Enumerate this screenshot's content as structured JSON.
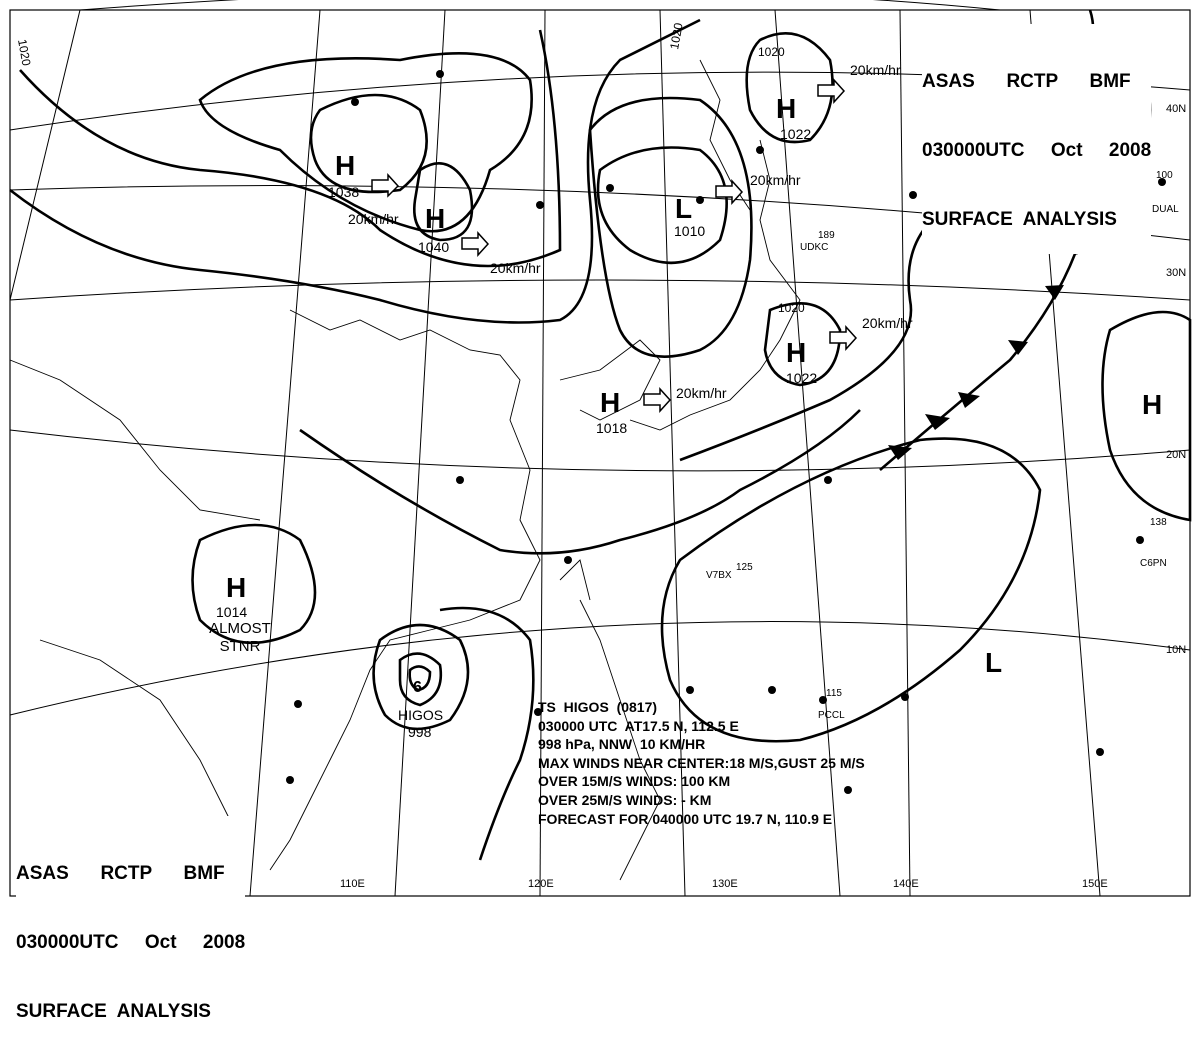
{
  "header": {
    "line1": "ASAS      RCTP      BMF",
    "line2": "030000UTC     Oct     2008",
    "line3": "SURFACE  ANALYSIS"
  },
  "footer": {
    "line1": "ASAS      RCTP      BMF",
    "line2": "030000UTC     Oct     2008",
    "line3": "SURFACE  ANALYSIS"
  },
  "longitudes": [
    "110E",
    "120E",
    "130E",
    "140E",
    "150E"
  ],
  "latitudes": [
    "40N",
    "30N",
    "20N",
    "10N"
  ],
  "isobar_labels": [
    "1020",
    "1020",
    "1020",
    "1020"
  ],
  "pressure_centers": [
    {
      "type": "H",
      "value": "1038",
      "motion": ""
    },
    {
      "type": "H",
      "value": "1040",
      "motion": "20km/hr"
    },
    {
      "type": "L",
      "value": "1010",
      "motion": "20km/hr"
    },
    {
      "type": "H",
      "value": "1022",
      "motion": "20km/hr"
    },
    {
      "type": "H",
      "value": "1022",
      "motion": "20km/hr"
    },
    {
      "type": "H",
      "value": "1018",
      "motion": "20km/hr"
    },
    {
      "type": "H",
      "value": "1014",
      "motion": "ALMOST STNR"
    },
    {
      "type": "H",
      "value": "",
      "motion": ""
    },
    {
      "type": "L",
      "value": "",
      "motion": ""
    }
  ],
  "extra_motion": "20km/hr",
  "typhoon": {
    "name": "HIGOS",
    "pressure": "998",
    "info": [
      "TS  HIGOS  (0817)",
      "030000 UTC  AT17.5 N, 112.5 E",
      "998 hPa, NNW  10 KM/HR",
      "MAX WINDS NEAR CENTER:18 M/S,GUST 25 M/S",
      "OVER 15M/S WINDS: 100 KM",
      "OVER 25M/S WINDS: - KM",
      "FORECAST FOR 040000 UTC 19.7 N, 110.9 E"
    ]
  },
  "stations": [
    {
      "id": "UDKC",
      "pressure": "189"
    },
    {
      "id": "V7BX",
      "pressure": "125"
    },
    {
      "id": "PCCL",
      "pressure": "115"
    },
    {
      "id": "C6PN",
      "pressure": "138"
    },
    {
      "id": "DUAL",
      "pressure": "100"
    }
  ],
  "colors": {
    "ink": "#000000",
    "paper": "#ffffff"
  }
}
